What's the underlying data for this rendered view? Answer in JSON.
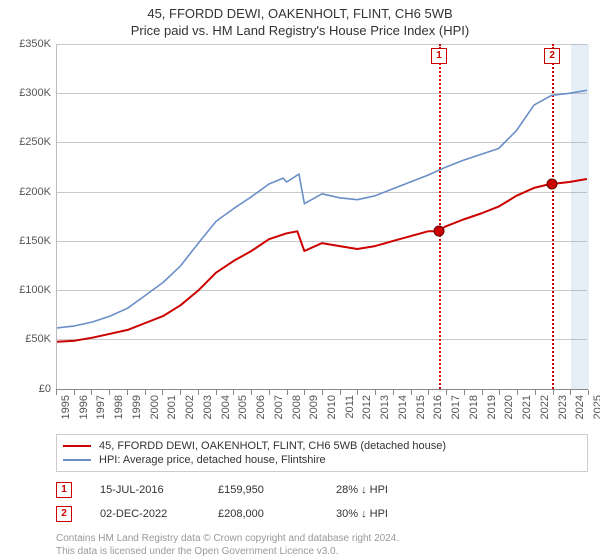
{
  "title": "45, FFORDD DEWI, OAKENHOLT, FLINT, CH6 5WB",
  "subtitle": "Price paid vs. HM Land Registry's House Price Index (HPI)",
  "chart": {
    "type": "line",
    "background_color": "#ffffff",
    "grid_color": "#888888",
    "ylabel_prefix": "£",
    "ylabel_suffix": "K",
    "ylim": [
      0,
      350
    ],
    "ytick_step": 50,
    "xlim": [
      1995,
      2025
    ],
    "xtick_step": 1,
    "xtick_rotation": -90,
    "band": {
      "from": 2024,
      "to": 2025,
      "color": "#e6eef7"
    },
    "series": [
      {
        "id": "property",
        "label": "45, FFORDD DEWI, OAKENHOLT, FLINT, CH6 5WB (detached house)",
        "color": "#cc0000",
        "width": 2,
        "points": [
          [
            1995,
            48
          ],
          [
            1996,
            49
          ],
          [
            1997,
            52
          ],
          [
            1998,
            56
          ],
          [
            1999,
            60
          ],
          [
            2000,
            67
          ],
          [
            2001,
            74
          ],
          [
            2002,
            85
          ],
          [
            2003,
            100
          ],
          [
            2004,
            118
          ],
          [
            2005,
            130
          ],
          [
            2006,
            140
          ],
          [
            2007,
            152
          ],
          [
            2008,
            158
          ],
          [
            2008.6,
            160
          ],
          [
            2009,
            140
          ],
          [
            2010,
            148
          ],
          [
            2011,
            145
          ],
          [
            2012,
            142
          ],
          [
            2013,
            145
          ],
          [
            2014,
            150
          ],
          [
            2015,
            155
          ],
          [
            2016,
            160
          ],
          [
            2016.54,
            159.95
          ],
          [
            2017,
            165
          ],
          [
            2018,
            172
          ],
          [
            2019,
            178
          ],
          [
            2020,
            185
          ],
          [
            2021,
            196
          ],
          [
            2022,
            204
          ],
          [
            2022.92,
            208
          ],
          [
            2023,
            208
          ],
          [
            2024,
            210
          ],
          [
            2025,
            213
          ]
        ]
      },
      {
        "id": "hpi",
        "label": "HPI: Average price, detached house, Flintshire",
        "color": "#6a8fc7",
        "width": 1.6,
        "points": [
          [
            1995,
            62
          ],
          [
            1996,
            64
          ],
          [
            1997,
            68
          ],
          [
            1998,
            74
          ],
          [
            1999,
            82
          ],
          [
            2000,
            95
          ],
          [
            2001,
            108
          ],
          [
            2002,
            125
          ],
          [
            2003,
            148
          ],
          [
            2004,
            170
          ],
          [
            2005,
            183
          ],
          [
            2006,
            195
          ],
          [
            2007,
            208
          ],
          [
            2007.8,
            214
          ],
          [
            2008,
            210
          ],
          [
            2008.7,
            218
          ],
          [
            2009,
            188
          ],
          [
            2010,
            198
          ],
          [
            2011,
            194
          ],
          [
            2012,
            192
          ],
          [
            2013,
            196
          ],
          [
            2014,
            203
          ],
          [
            2015,
            210
          ],
          [
            2016,
            217
          ],
          [
            2017,
            225
          ],
          [
            2018,
            232
          ],
          [
            2019,
            238
          ],
          [
            2020,
            244
          ],
          [
            2021,
            262
          ],
          [
            2022,
            288
          ],
          [
            2023,
            298
          ],
          [
            2024,
            300
          ],
          [
            2025,
            303
          ]
        ]
      }
    ],
    "markers": [
      {
        "x": 2016.54,
        "y": 159.95,
        "fill": "#cc0000",
        "stroke": "#660000"
      },
      {
        "x": 2022.92,
        "y": 208.0,
        "fill": "#cc0000",
        "stroke": "#660000"
      }
    ],
    "callouts": [
      {
        "num": "1",
        "x": 2016.54
      },
      {
        "num": "2",
        "x": 2022.92
      }
    ]
  },
  "legend": {
    "items": [
      {
        "color": "#cc0000",
        "text": "45, FFORDD DEWI, OAKENHOLT, FLINT, CH6 5WB (detached house)"
      },
      {
        "color": "#6a8fc7",
        "text": "HPI: Average price, detached house, Flintshire"
      }
    ]
  },
  "sales": [
    {
      "num": "1",
      "date": "15-JUL-2016",
      "price": "£159,950",
      "delta": "28% ↓ HPI"
    },
    {
      "num": "2",
      "date": "02-DEC-2022",
      "price": "£208,000",
      "delta": "30% ↓ HPI"
    }
  ],
  "footer": {
    "line1": "Contains HM Land Registry data © Crown copyright and database right 2024.",
    "line2": "This data is licensed under the Open Government Licence v3.0."
  }
}
